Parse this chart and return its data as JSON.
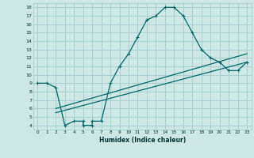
{
  "title": "",
  "xlabel": "Humidex (Indice chaleur)",
  "bg_color": "#cde8e4",
  "grid_color": "#a0cccc",
  "line_color": "#006666",
  "line1_x": [
    0,
    1,
    2,
    3,
    4,
    5,
    5,
    6,
    6,
    7,
    8,
    9,
    10,
    11,
    12,
    13,
    14,
    15,
    16,
    17,
    18,
    19,
    20,
    21,
    22,
    23
  ],
  "line1_y": [
    9,
    9,
    8.5,
    4,
    4.5,
    4.5,
    4,
    4,
    4.5,
    4.5,
    9.0,
    11,
    12.5,
    14.5,
    16.5,
    17,
    18,
    18,
    17,
    15,
    13,
    12,
    11.5,
    10.5,
    10.5,
    11.5
  ],
  "line2_x": [
    2,
    23
  ],
  "line2_y": [
    6.0,
    12.5
  ],
  "line3_x": [
    2,
    23
  ],
  "line3_y": [
    5.5,
    11.5
  ],
  "xmin": -0.5,
  "xmax": 23.5,
  "ymin": 3.5,
  "ymax": 18.5,
  "xticks": [
    0,
    1,
    2,
    3,
    4,
    5,
    6,
    7,
    8,
    9,
    10,
    11,
    12,
    13,
    14,
    15,
    16,
    17,
    18,
    19,
    20,
    21,
    22,
    23
  ],
  "yticks": [
    4,
    5,
    6,
    7,
    8,
    9,
    10,
    11,
    12,
    13,
    14,
    15,
    16,
    17,
    18
  ]
}
